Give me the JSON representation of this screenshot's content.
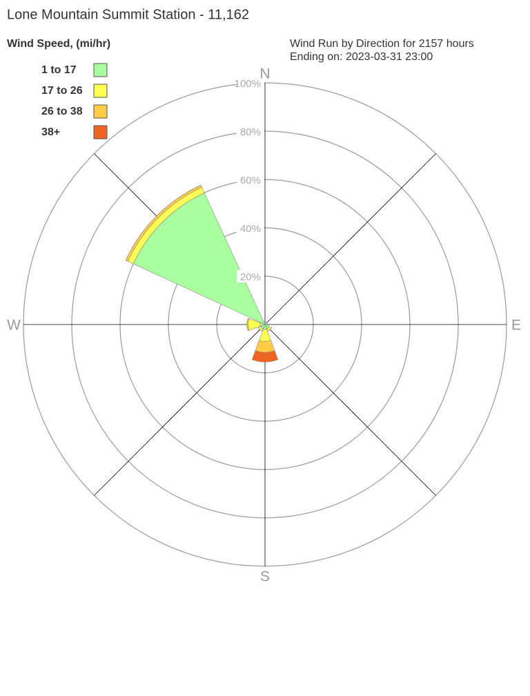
{
  "chart_data": {
    "type": "windrose",
    "title": "Lone Mountain Summit Station - 11,162",
    "legend_title": "Wind Speed, (mi/hr)",
    "subtitle": [
      "Wind Run by Direction for 2157 hours",
      "Ending on: 2023-03-31 23:00"
    ],
    "categories": [
      "N",
      null,
      "E",
      null,
      "S",
      null,
      "W",
      null
    ],
    "rlim": [
      0,
      100
    ],
    "rticks": [
      {
        "value": 20,
        "label": "20%"
      },
      {
        "value": 40,
        "label": "40%"
      },
      {
        "value": 60,
        "label": "60%"
      },
      {
        "value": 80,
        "label": "80%"
      },
      {
        "value": 100,
        "label": "100%"
      }
    ],
    "legend": "upper left",
    "series": [
      {
        "name": "1 to 17",
        "color": "#aaffa0",
        "values": [
          1,
          1,
          1,
          2,
          2,
          2,
          2,
          60
        ]
      },
      {
        "name": "17 to 26",
        "color": "#ffff55",
        "values": [
          0,
          0,
          0,
          1,
          5,
          1,
          5,
          2.5
        ]
      },
      {
        "name": "26 to 38",
        "color": "#ffcc44",
        "values": [
          0,
          0,
          0,
          0,
          4.5,
          0,
          0.5,
          1
        ]
      },
      {
        "name": "38+",
        "color": "#ee6622",
        "values": [
          0,
          0,
          0,
          0,
          4,
          0,
          0,
          0
        ]
      }
    ]
  }
}
